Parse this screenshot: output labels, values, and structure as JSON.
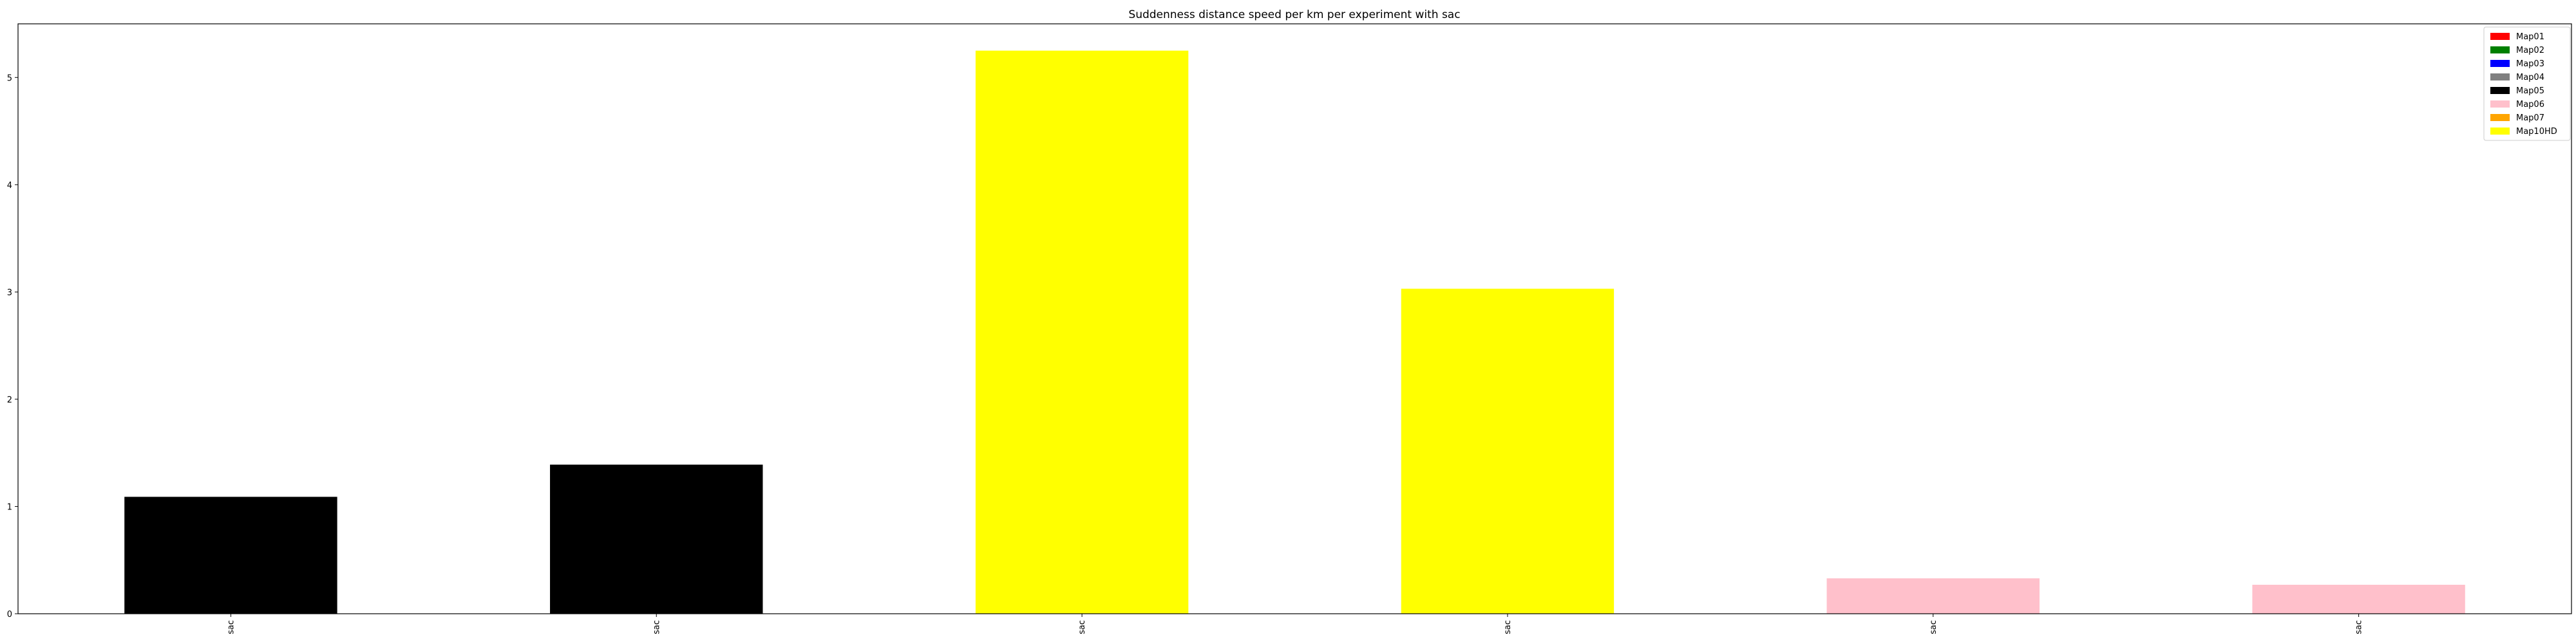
{
  "chart_data": {
    "type": "bar",
    "title": "Suddenness distance speed per km per experiment with sac",
    "xlabel": "",
    "ylabel": "",
    "categories": [
      "sac",
      "sac",
      "sac",
      "sac",
      "sac",
      "sac"
    ],
    "values": [
      1.09,
      1.39,
      5.25,
      3.03,
      0.33,
      0.27
    ],
    "bar_colors": [
      "#000000",
      "#000000",
      "#ffff00",
      "#ffff00",
      "#ffc0cb",
      "#ffc0cb"
    ],
    "ylim": [
      0,
      5.5
    ],
    "yticks": [
      0,
      1,
      2,
      3,
      4,
      5
    ],
    "grid": false,
    "legend_position": "top-right",
    "legend": [
      {
        "label": "Map01",
        "color": "#ff0000"
      },
      {
        "label": "Map02",
        "color": "#008000"
      },
      {
        "label": "Map03",
        "color": "#0000ff"
      },
      {
        "label": "Map04",
        "color": "#808080"
      },
      {
        "label": "Map05",
        "color": "#000000"
      },
      {
        "label": "Map06",
        "color": "#ffc0cb"
      },
      {
        "label": "Map07",
        "color": "#ffa500"
      },
      {
        "label": "Map10HD",
        "color": "#ffff00"
      }
    ]
  }
}
